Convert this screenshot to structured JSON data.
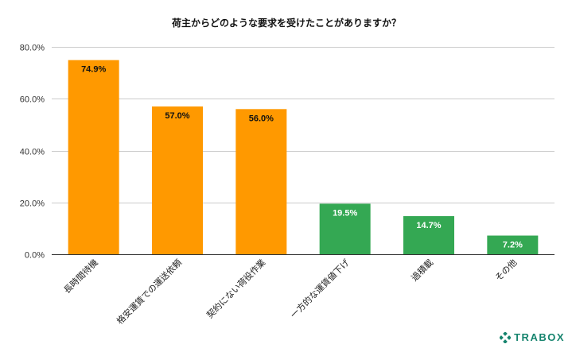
{
  "chart_data": {
    "type": "bar",
    "title": "荷主からどのような要求を受けたことがありますか？",
    "categories": [
      "長時間待機",
      "格安運賃での運送依頼",
      "契約にない荷役作業",
      "一方的な運賃値下げ",
      "過積載",
      "その他"
    ],
    "values": [
      74.9,
      57.0,
      56.0,
      19.5,
      14.7,
      7.2
    ],
    "value_labels": [
      "74.9%",
      "57.0%",
      "56.0%",
      "19.5%",
      "14.7%",
      "7.2%"
    ],
    "bar_colors": [
      "#FF9900",
      "#FF9900",
      "#FF9900",
      "#34A853",
      "#34A853",
      "#34A853"
    ],
    "yticks": [
      0,
      20,
      40,
      60,
      80
    ],
    "ytick_labels": [
      "0.0%",
      "20.0%",
      "40.0%",
      "60.0%",
      "80.0%"
    ],
    "ylim": [
      0,
      80
    ],
    "xlabel": "",
    "ylabel": "",
    "grid": true,
    "legend": false
  },
  "brand": {
    "name": "TRABOX",
    "color": "#16846E",
    "icon": "trabox-logo-icon"
  }
}
